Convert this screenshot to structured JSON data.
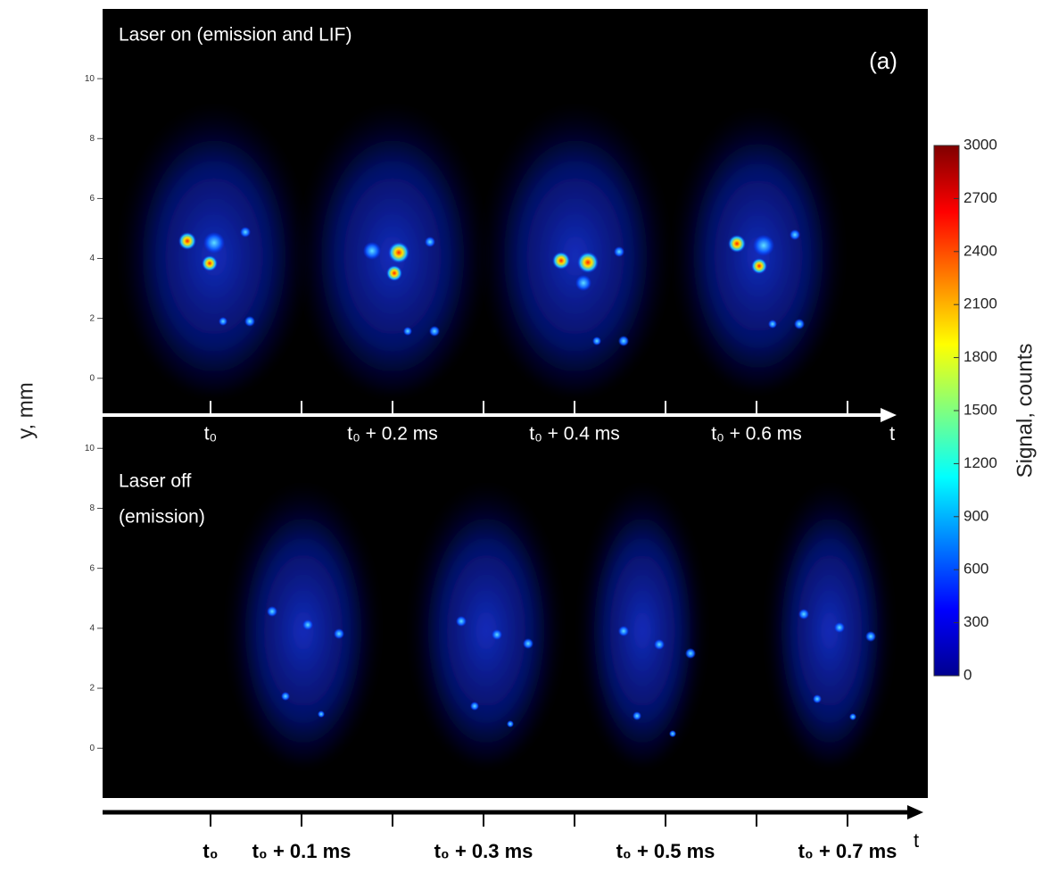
{
  "chart_data": {
    "type": "heatmap",
    "panel_label": "(a)",
    "ylabel": "y, mm",
    "colorbar_label": "Signal, counts",
    "colormap": "jet",
    "colorbar_lim": [
      0,
      3000
    ],
    "colorbar_ticks": [
      0,
      300,
      600,
      900,
      1200,
      1500,
      1800,
      2100,
      2400,
      2700,
      3000
    ],
    "panels": [
      {
        "title": [
          "Laser on (emission and LIF)"
        ],
        "ylim": [
          -0.9,
          12
        ],
        "yticks": [
          0,
          2,
          4,
          6,
          8,
          10
        ],
        "time_labels": [
          "t₀",
          null,
          "t₀ + 0.2 ms",
          null,
          "t₀ + 0.4 ms",
          null,
          "t₀ + 0.6 ms",
          null
        ],
        "axis_label": "t"
      },
      {
        "title": [
          "Laser off",
          "(emission)"
        ],
        "ylim": [
          -1.6,
          10.9
        ],
        "yticks": [
          0,
          2,
          4,
          6,
          8,
          10
        ],
        "time_labels": [
          "t₀",
          "t₀ + 0.1 ms",
          null,
          "t₀ + 0.3 ms",
          null,
          "t₀ + 0.5 ms",
          null,
          "t₀ + 0.7 ms"
        ],
        "axis_label": "t"
      }
    ]
  }
}
